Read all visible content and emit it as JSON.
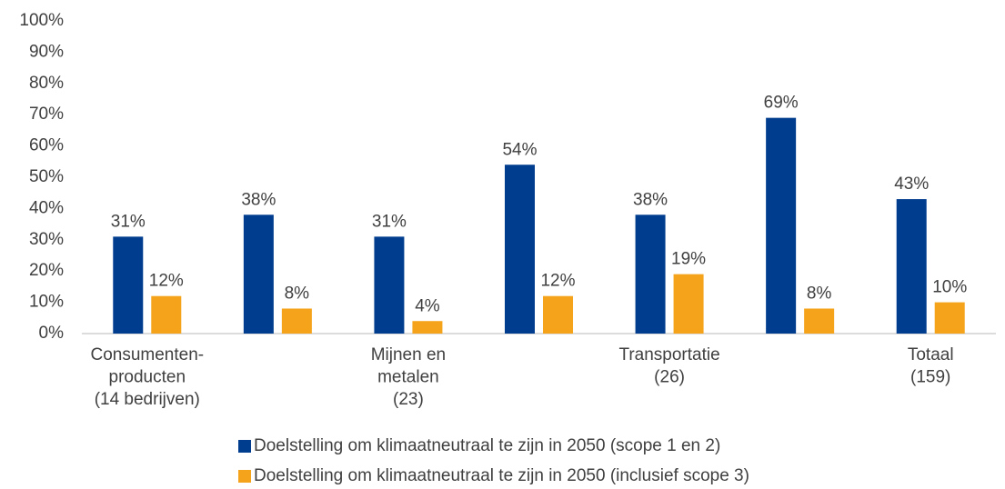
{
  "chart_data": {
    "type": "bar",
    "categories": [
      "Consumenten-\nproducten\n(14 bedrijven)",
      null,
      "Mijnen en\nmetalen\n(23)",
      null,
      "Transportatie\n\n(26)",
      null,
      "Totaal\n\n(159)"
    ],
    "series": [
      {
        "name": "Doelstelling om klimaatneutraal te zijn in 2050 (scope 1 en 2)",
        "color": "#003d8f",
        "values": [
          31,
          38,
          31,
          54,
          38,
          69,
          43
        ],
        "value_labels": [
          "31%",
          "38%",
          "31%",
          "54%",
          "38%",
          "69%",
          "43%"
        ]
      },
      {
        "name": "Doelstelling om klimaatneutraal te zijn in 2050 (inclusief scope 3)",
        "color": "#f5a31a",
        "values": [
          12,
          8,
          4,
          12,
          19,
          8,
          10
        ],
        "value_labels": [
          "12%",
          "8%",
          "4%",
          "12%",
          "19%",
          "8%",
          "10%"
        ]
      }
    ],
    "ylim": [
      0,
      100
    ],
    "yticks": [
      {
        "value": 0,
        "label": "0%"
      },
      {
        "value": 10,
        "label": "10%"
      },
      {
        "value": 20,
        "label": "20%"
      },
      {
        "value": 30,
        "label": "30%"
      },
      {
        "value": 40,
        "label": "40%"
      },
      {
        "value": 50,
        "label": "50%"
      },
      {
        "value": 60,
        "label": "60%"
      },
      {
        "value": 70,
        "label": "70%"
      },
      {
        "value": 80,
        "label": "80%"
      },
      {
        "value": 90,
        "label": "90%"
      },
      {
        "value": 100,
        "label": "100%"
      }
    ],
    "grid": false
  }
}
